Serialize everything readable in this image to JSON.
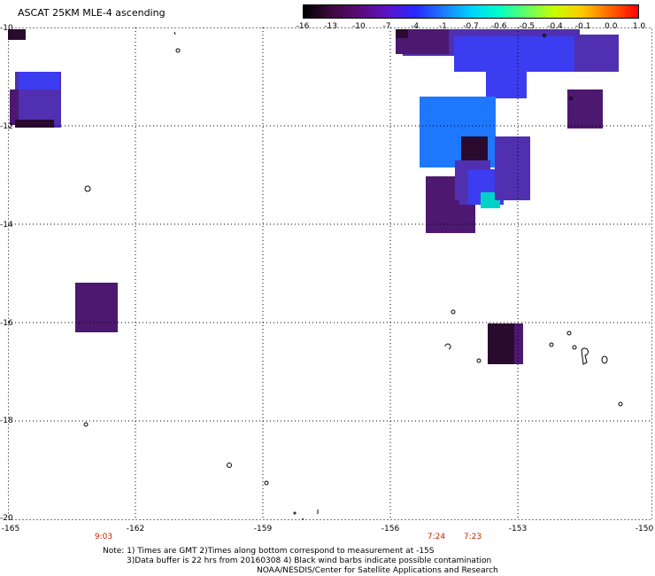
{
  "title": "ASCAT 25KM MLE-4 ascending",
  "colorbar": {
    "ticks": [
      "-16",
      "-13",
      "-10",
      "-7",
      "-4",
      "-1",
      "-0.7",
      "-0.6",
      "-0.5",
      "-0.4",
      "-0.1",
      "0.0",
      "1.0"
    ],
    "colors": [
      "#000000",
      "#3c0a3c",
      "#5a0a78",
      "#5a14c8",
      "#2828ff",
      "#1e78ff",
      "#00d2ff",
      "#00ffc8",
      "#64ff64",
      "#c8ff00",
      "#ffc800",
      "#ff6400",
      "#ff0000"
    ]
  },
  "map": {
    "latitudes": [
      "-10",
      "-12",
      "-14",
      "-16",
      "-18",
      "-20"
    ],
    "longitudes": [
      "-165",
      "-162",
      "-159",
      "-156",
      "-153",
      "-150"
    ],
    "times": [
      "9:03",
      "7:24",
      "7:23"
    ],
    "lat_range": [
      -20,
      -10
    ],
    "lon_range": [
      -165,
      -150
    ],
    "grid": "dotted",
    "swath_colors": {
      "dark": "#2a0a2e",
      "purple": "#4c1870",
      "violet": "#5030b0",
      "blue": "#3c3cf0",
      "lightblue": "#1e78ff",
      "cyan": "#00d2c8"
    }
  },
  "notes": {
    "line1": "Note: 1) Times are GMT 2)Times along bottom correspond to measurement at -15S",
    "line2": "3)Data buffer is 22 hrs from 20160308 4) Black wind barbs indicate possible contamination",
    "line3": "NOAA/NESDIS/Center for Satellite Applications and Research"
  }
}
